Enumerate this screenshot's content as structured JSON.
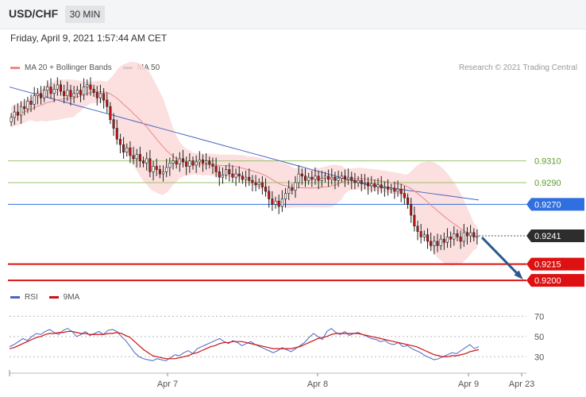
{
  "header": {
    "symbol": "USD/CHF",
    "timeframe": "30 MIN"
  },
  "datetime": "Friday, April 9, 2021 1:57:44 AM CET",
  "legend": {
    "ma20": "MA 20 + Bollinger Bands",
    "ma50": "MA 50",
    "rsi": "RSI",
    "rsi_ma": "9MA"
  },
  "credit": "Research © 2021 Trading Central",
  "colors": {
    "band": "#fbd9d9",
    "ma20": "#e88b8b",
    "ma50": "#4a66c4",
    "up": "#ffffff",
    "down": "#cc1111",
    "support": "#dd1111",
    "resistance": "#9cc26a",
    "pivot": "#2f6fe0",
    "arrow": "#2b5a8e"
  },
  "chart_data": [
    {
      "type": "candlestick",
      "x_ticks": [
        "Apr 7",
        "Apr 8",
        "Apr 9",
        "Apr 23"
      ],
      "ylim": [
        0.9195,
        0.9335
      ],
      "levels": [
        {
          "name": "resistance-2",
          "value": 0.931,
          "label": "0.9310",
          "kind": "resistance"
        },
        {
          "name": "resistance-1",
          "value": 0.929,
          "label": "0.9290",
          "kind": "resistance"
        },
        {
          "name": "pivot",
          "value": 0.927,
          "label": "0.9270",
          "kind": "pivot"
        },
        {
          "name": "last-price",
          "value": 0.9241,
          "label": "0.9241",
          "kind": "last"
        },
        {
          "name": "support-1",
          "value": 0.9215,
          "label": "0.9215",
          "kind": "support"
        },
        {
          "name": "support-2",
          "value": 0.92,
          "label": "0.9200",
          "kind": "support"
        }
      ],
      "close": [
        0.935,
        0.9355,
        0.9352,
        0.936,
        0.9358,
        0.9365,
        0.9362,
        0.937,
        0.9372,
        0.9368,
        0.9375,
        0.9378,
        0.9372,
        0.9376,
        0.938,
        0.9374,
        0.937,
        0.9375,
        0.9369,
        0.9372,
        0.9375,
        0.9371,
        0.9378,
        0.938,
        0.9376,
        0.9373,
        0.9368,
        0.9372,
        0.9366,
        0.936,
        0.9348,
        0.934,
        0.933,
        0.9325,
        0.9318,
        0.9322,
        0.9315,
        0.9312,
        0.9316,
        0.931,
        0.9308,
        0.9312,
        0.93,
        0.9305,
        0.9302,
        0.9298,
        0.93,
        0.9304,
        0.9308,
        0.931,
        0.9307,
        0.9312,
        0.9309,
        0.9305,
        0.931,
        0.9306,
        0.9309,
        0.9311,
        0.9308,
        0.931,
        0.9307,
        0.9305,
        0.93,
        0.9295,
        0.9297,
        0.9302,
        0.9298,
        0.9295,
        0.9298,
        0.9296,
        0.9293,
        0.9295,
        0.9292,
        0.929,
        0.9288,
        0.929,
        0.9286,
        0.9282,
        0.9275,
        0.927,
        0.9273,
        0.9268,
        0.9275,
        0.928,
        0.9285,
        0.9283,
        0.929,
        0.9298,
        0.9296,
        0.9292,
        0.9295,
        0.9293,
        0.9296,
        0.9292,
        0.9294,
        0.9296,
        0.9293,
        0.9295,
        0.9292,
        0.9294,
        0.9296,
        0.9293,
        0.9295,
        0.9292,
        0.929,
        0.9292,
        0.9289,
        0.929,
        0.9287,
        0.9289,
        0.9286,
        0.9288,
        0.9285,
        0.9286,
        0.9284,
        0.9285,
        0.9282,
        0.9284,
        0.928,
        0.9276,
        0.927,
        0.926,
        0.925,
        0.9245,
        0.924,
        0.9242,
        0.9236,
        0.9232,
        0.9236,
        0.9232,
        0.9238,
        0.9235,
        0.924,
        0.9238,
        0.9243,
        0.924,
        0.9236,
        0.9244,
        0.9241,
        0.9244,
        0.924,
        0.9241
      ],
      "ma50": [
        0.9378,
        0.9376,
        0.9374,
        0.9372,
        0.937,
        0.9368,
        0.9366,
        0.9364,
        0.9362,
        0.936,
        0.9358,
        0.9356,
        0.9354,
        0.9352,
        0.935,
        0.9348,
        0.9346,
        0.9344,
        0.9342,
        0.934,
        0.9338,
        0.9336,
        0.9334,
        0.9332,
        0.933,
        0.9328,
        0.9326,
        0.9324,
        0.9322,
        0.932,
        0.9318,
        0.9316,
        0.9314,
        0.9312,
        0.931,
        0.9308,
        0.9306,
        0.9304,
        0.9302,
        0.93,
        0.9298,
        0.9296,
        0.9294,
        0.9292,
        0.929,
        0.9288,
        0.9287,
        0.9286,
        0.9285,
        0.9284,
        0.9283,
        0.9282,
        0.9281,
        0.928,
        0.9279,
        0.9278,
        0.9277,
        0.9276,
        0.9275,
        0.9274
      ],
      "forecast": {
        "from": 0.9241,
        "to": 0.92
      }
    },
    {
      "type": "line",
      "name": "RSI",
      "y_ticks": [
        30,
        50,
        70
      ],
      "ylim": [
        20,
        75
      ],
      "rsi": [
        40,
        42,
        45,
        48,
        46,
        50,
        53,
        52,
        55,
        57,
        54,
        52,
        56,
        58,
        55,
        50,
        52,
        55,
        51,
        53,
        55,
        52,
        56,
        57,
        55,
        50,
        46,
        40,
        34,
        30,
        28,
        27,
        26,
        28,
        27,
        26,
        29,
        32,
        31,
        34,
        36,
        33,
        38,
        40,
        42,
        44,
        46,
        48,
        45,
        43,
        46,
        44,
        41,
        43,
        45,
        42,
        40,
        38,
        36,
        34,
        36,
        39,
        37,
        35,
        38,
        41,
        44,
        49,
        53,
        50,
        47,
        55,
        58,
        54,
        52,
        55,
        51,
        53,
        54,
        52,
        50,
        48,
        47,
        45,
        46,
        43,
        42,
        44,
        40,
        41,
        38,
        36,
        34,
        31,
        29,
        27,
        28,
        30,
        32,
        34,
        33,
        36,
        39,
        42,
        38,
        40
      ],
      "ma9": [
        38,
        39,
        41,
        43,
        45,
        47,
        49,
        50,
        52,
        53,
        53,
        54,
        54,
        55,
        55,
        54,
        53,
        53,
        52,
        52,
        52,
        52,
        53,
        53,
        54,
        53,
        51,
        49,
        45,
        41,
        37,
        34,
        31,
        30,
        29,
        28,
        28,
        28,
        29,
        30,
        31,
        33,
        34,
        36,
        38,
        40,
        41,
        43,
        44,
        44,
        45,
        45,
        45,
        44,
        43,
        42,
        41,
        40,
        39,
        38,
        38,
        38,
        38,
        38,
        39,
        40,
        42,
        44,
        46,
        48,
        49,
        50,
        52,
        53,
        53,
        53,
        53,
        53,
        53,
        52,
        51,
        50,
        49,
        48,
        47,
        46,
        45,
        44,
        43,
        42,
        41,
        40,
        38,
        36,
        34,
        32,
        31,
        30,
        30,
        31,
        31,
        32,
        33,
        35,
        36,
        37
      ]
    }
  ]
}
